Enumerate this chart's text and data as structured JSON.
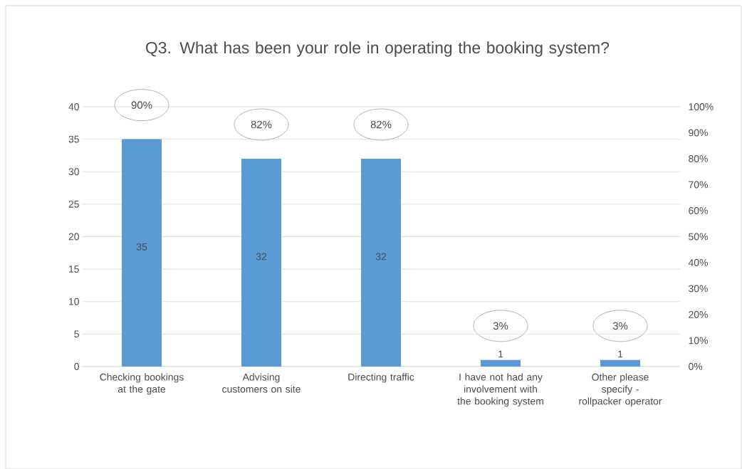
{
  "chart_data": {
    "type": "bar",
    "title": "Q3. What has been your role in operating the booking system?",
    "categories": [
      "Checking bookings at the gate",
      "Advising customers on site",
      "Directing traffic",
      "I have not had any involvement with the booking system",
      "Other please specify - rollpacker operator"
    ],
    "series": [
      {
        "values": [
          35,
          32,
          32,
          1,
          1
        ],
        "color": "#5b9bd5"
      }
    ],
    "data_labels": true,
    "ylim": [
      0,
      40
    ],
    "yticks": [
      0,
      5,
      10,
      15,
      20,
      25,
      30,
      35,
      40
    ],
    "y2lim": [
      0,
      100
    ],
    "y2ticks": [
      {
        "value": 0,
        "label": "0%"
      },
      {
        "value": 10,
        "label": "10%"
      },
      {
        "value": 20,
        "label": "20%"
      },
      {
        "value": 30,
        "label": "30%"
      },
      {
        "value": 40,
        "label": "40%"
      },
      {
        "value": 50,
        "label": "50%"
      },
      {
        "value": 60,
        "label": "60%"
      },
      {
        "value": 70,
        "label": "70%"
      },
      {
        "value": 80,
        "label": "80%"
      },
      {
        "value": 90,
        "label": "90%"
      },
      {
        "value": 100,
        "label": "100%"
      }
    ],
    "grid": "y",
    "annotations": [
      "90%",
      "82%",
      "82%",
      "3%",
      "3%"
    ]
  }
}
